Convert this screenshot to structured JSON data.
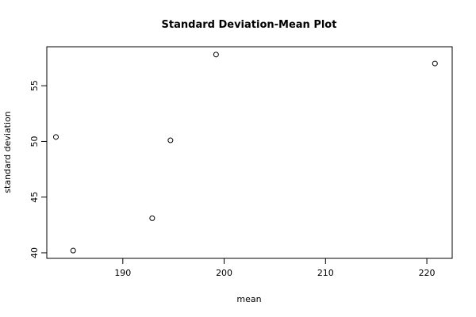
{
  "chart_data": {
    "type": "scatter",
    "title": "Standard Deviation-Mean Plot",
    "xlabel": "mean",
    "ylabel": "standard deviation",
    "xlim": [
      182.5,
      222.5
    ],
    "ylim": [
      39.5,
      58.5
    ],
    "xticks": [
      190,
      200,
      210,
      220
    ],
    "yticks": [
      40,
      45,
      50,
      55
    ],
    "grid": false,
    "points": [
      {
        "x": 183.4,
        "y": 50.4
      },
      {
        "x": 185.1,
        "y": 40.2
      },
      {
        "x": 192.9,
        "y": 43.1
      },
      {
        "x": 194.7,
        "y": 50.1
      },
      {
        "x": 199.2,
        "y": 57.8
      },
      {
        "x": 220.8,
        "y": 57.0
      }
    ]
  }
}
